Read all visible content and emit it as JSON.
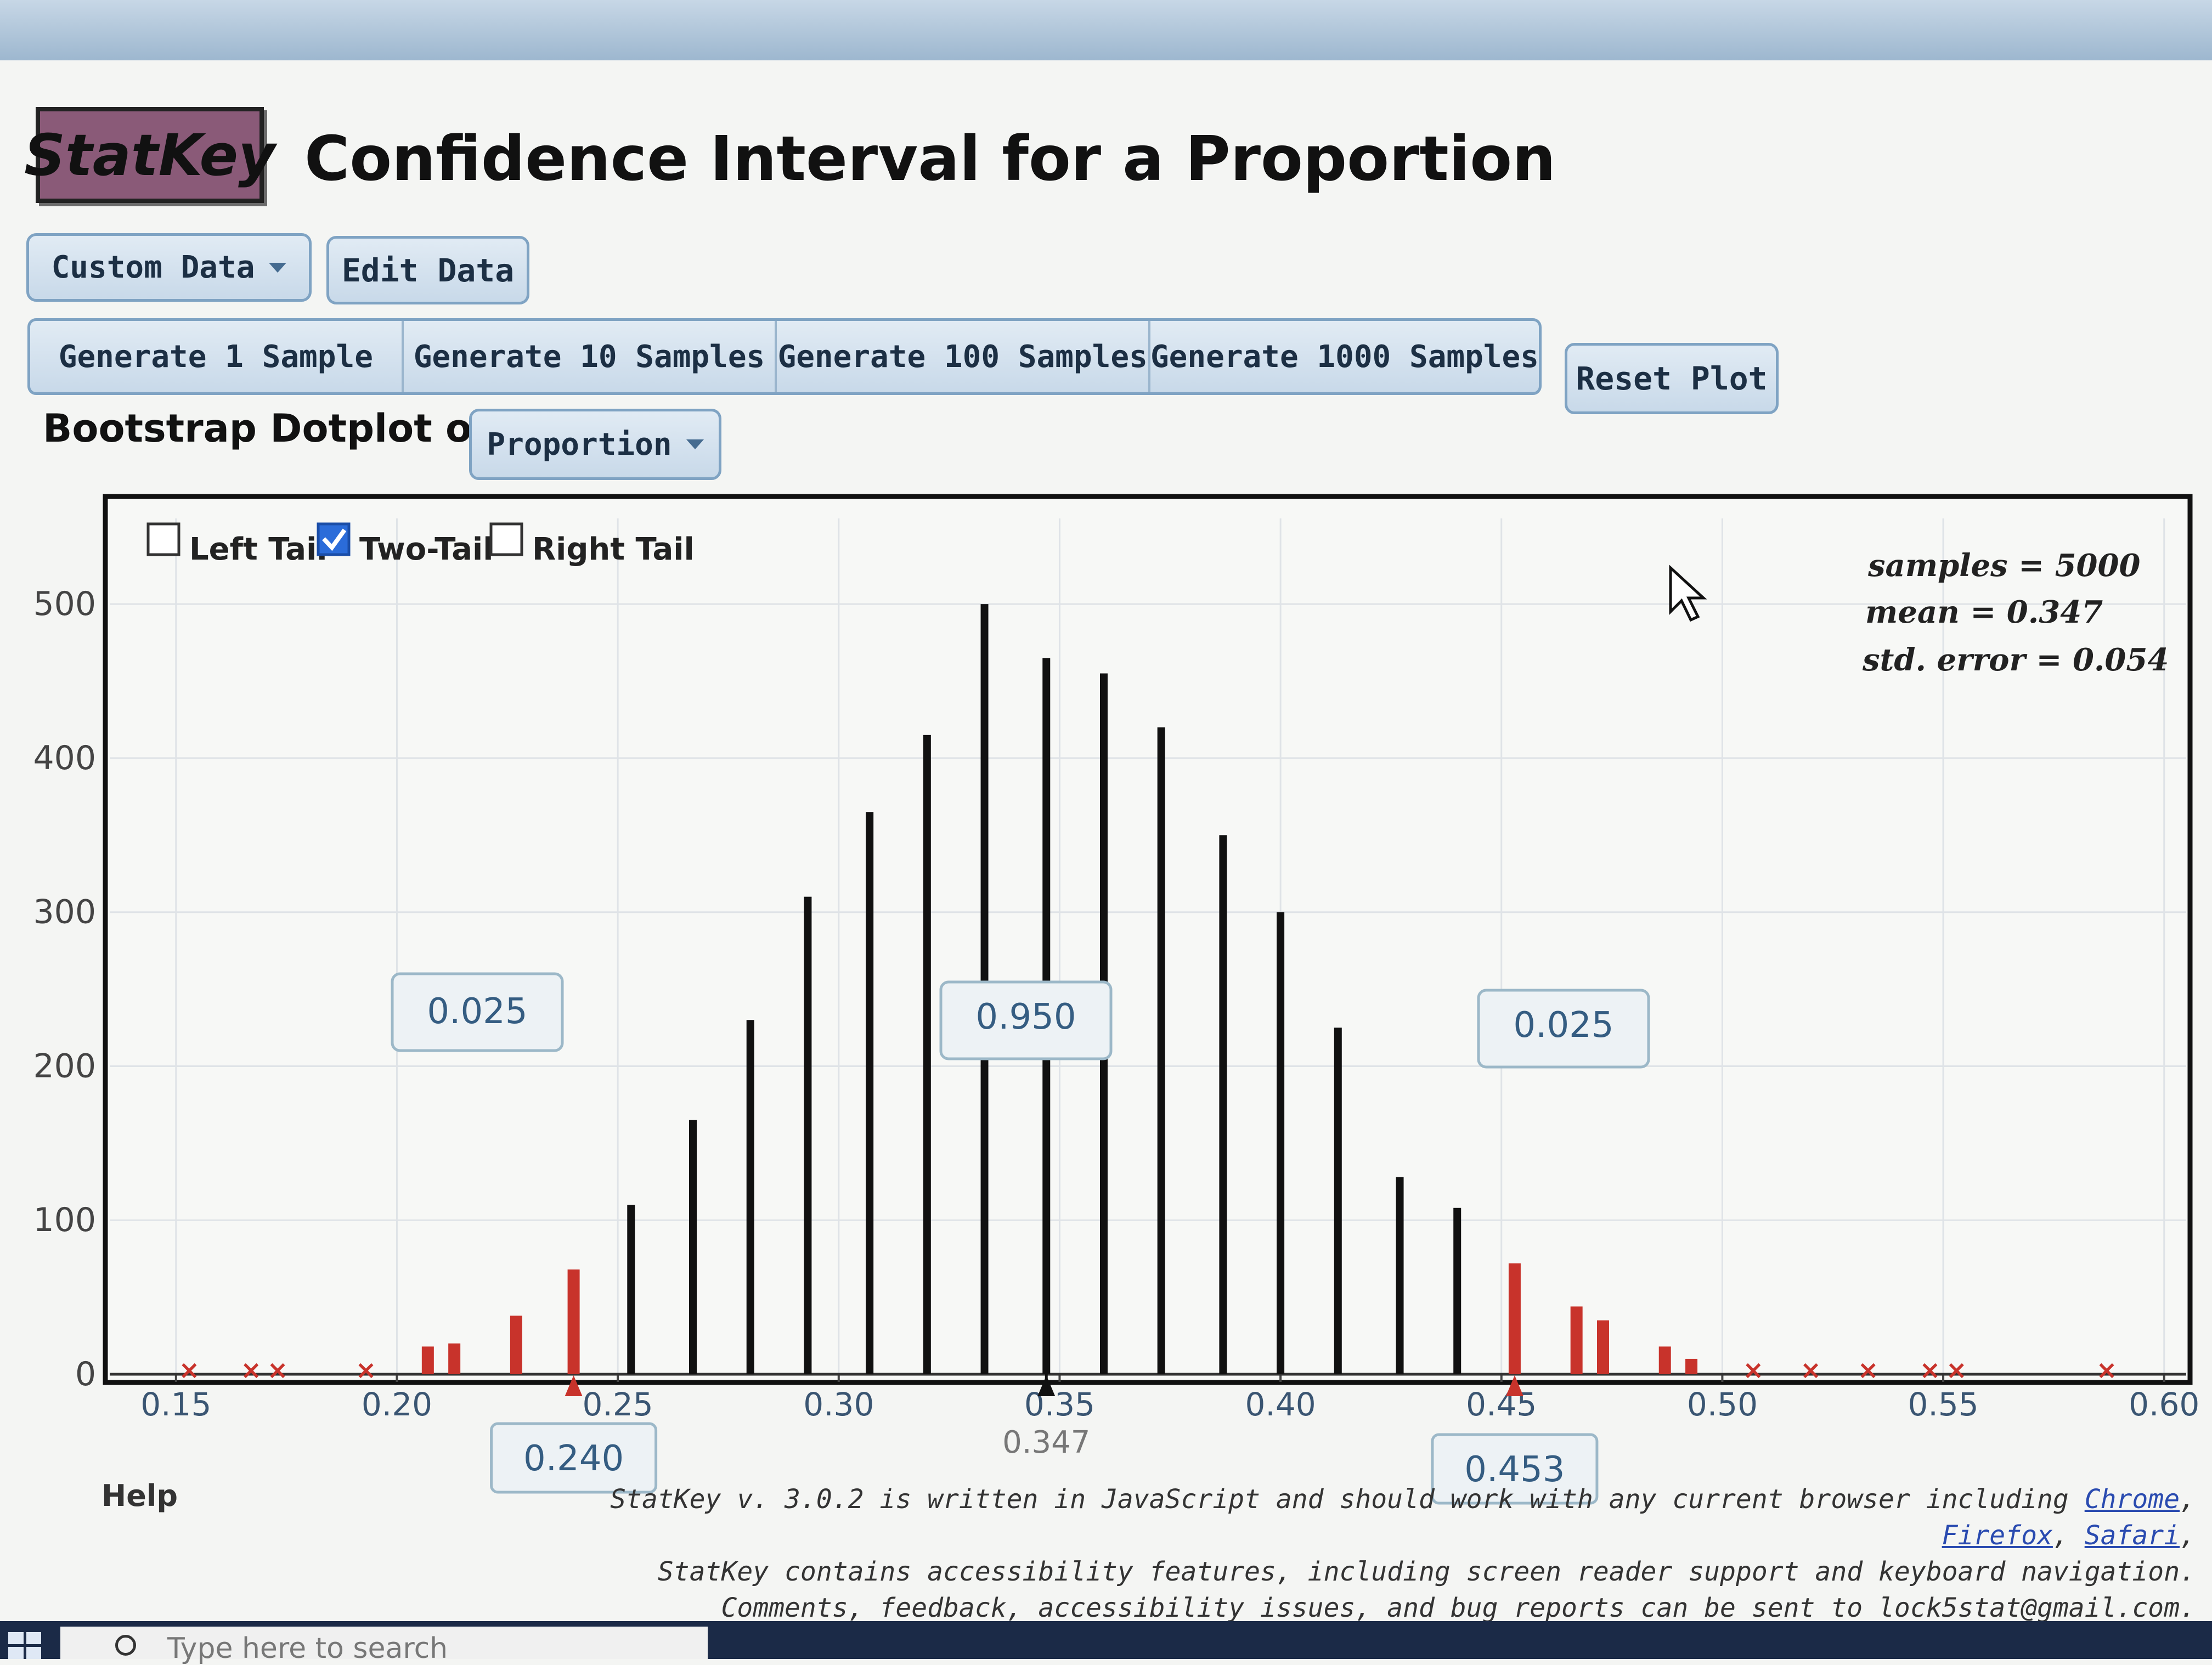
{
  "header": {
    "logo_text": "StatKey",
    "title": "Confidence Interval for a Proportion"
  },
  "toolbar": {
    "custom_data_label": "Custom Data",
    "edit_data_label": "Edit Data",
    "generate_buttons": [
      "Generate 1 Sample",
      "Generate 10 Samples",
      "Generate 100 Samples",
      "Generate 1000 Samples"
    ],
    "reset_label": "Reset Plot"
  },
  "dotplot": {
    "label": "Bootstrap Dotplot of",
    "statistic_select": "Proportion"
  },
  "tail_options": [
    {
      "label": "Left Tail",
      "checked": false
    },
    {
      "label": "Two-Tail",
      "checked": true
    },
    {
      "label": "Right Tail",
      "checked": false
    }
  ],
  "stats": {
    "samples": "samples = 5000",
    "mean": "mean = 0.347",
    "std_error": "std. error = 0.054"
  },
  "proportion_boxes": {
    "left": "0.025",
    "middle": "0.950",
    "right": "0.025"
  },
  "bounds": {
    "lower": "0.240",
    "upper": "0.453",
    "mean_label": "0.347"
  },
  "colors": {
    "bar": "#111111",
    "tail": "#c8332b",
    "button_border": "#7fa3c3",
    "logo_bg": "#8a5a78"
  },
  "chart_data": {
    "type": "bar",
    "y_tick_labels": [
      "500",
      "400",
      "300",
      "200",
      "100",
      "0"
    ],
    "x_tick_labels": [
      "0.15",
      "0.20",
      "0.25",
      "0.30",
      "0.35",
      "0.40",
      "0.45",
      "0.50",
      "0.55",
      "0.60"
    ],
    "xlim": [
      0.135,
      0.605
    ],
    "ylim": [
      0,
      520
    ],
    "x": [
      0.153,
      0.167,
      0.173,
      0.193,
      0.207,
      0.213,
      0.227,
      0.24,
      0.253,
      0.267,
      0.28,
      0.293,
      0.307,
      0.32,
      0.333,
      0.347,
      0.36,
      0.373,
      0.387,
      0.4,
      0.413,
      0.427,
      0.44,
      0.453,
      0.467,
      0.473,
      0.487,
      0.493,
      0.507,
      0.52,
      0.533,
      0.547,
      0.553,
      0.587
    ],
    "y": [
      1,
      1,
      1,
      1,
      18,
      20,
      38,
      68,
      110,
      165,
      230,
      310,
      365,
      415,
      500,
      465,
      455,
      420,
      350,
      300,
      225,
      128,
      108,
      72,
      44,
      35,
      18,
      10,
      2,
      2,
      1,
      1,
      1,
      1
    ],
    "lower_bound": 0.24,
    "upper_bound": 0.453,
    "mean": 0.347,
    "grid": true
  }
}
